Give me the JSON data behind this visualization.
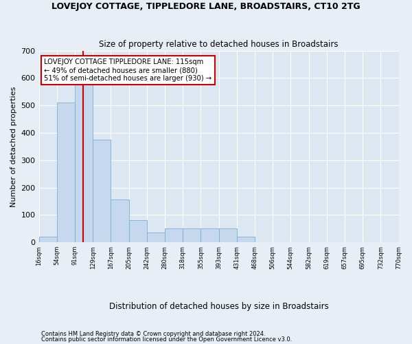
{
  "title": "LOVEJOY COTTAGE, TIPPLEDORE LANE, BROADSTAIRS, CT10 2TG",
  "subtitle": "Size of property relative to detached houses in Broadstairs",
  "xlabel": "Distribution of detached houses by size in Broadstairs",
  "ylabel": "Number of detached properties",
  "footnote1": "Contains HM Land Registry data © Crown copyright and database right 2024.",
  "footnote2": "Contains public sector information licensed under the Open Government Licence v3.0.",
  "bin_labels": [
    "16sqm",
    "54sqm",
    "91sqm",
    "129sqm",
    "167sqm",
    "205sqm",
    "242sqm",
    "280sqm",
    "318sqm",
    "355sqm",
    "393sqm",
    "431sqm",
    "468sqm",
    "506sqm",
    "544sqm",
    "582sqm",
    "619sqm",
    "657sqm",
    "695sqm",
    "732sqm",
    "770sqm"
  ],
  "bar_values": [
    20,
    510,
    580,
    375,
    155,
    80,
    35,
    50,
    50,
    50,
    50,
    20,
    0,
    0,
    0,
    0,
    0,
    0,
    0,
    0
  ],
  "bar_color": "#c5d8ee",
  "bar_edge_color": "#7aafd4",
  "vline_x": 2.45,
  "vline_color": "#cc0000",
  "annotation_text": "LOVEJOY COTTAGE TIPPLEDORE LANE: 115sqm\n← 49% of detached houses are smaller (880)\n51% of semi-detached houses are larger (930) →",
  "annotation_box_color": "#ffffff",
  "annotation_box_edge": "#cc0000",
  "ylim": [
    0,
    700
  ],
  "yticks": [
    0,
    100,
    200,
    300,
    400,
    500,
    600,
    700
  ],
  "bg_color": "#e8eef5",
  "plot_bg": "#dce7f2"
}
